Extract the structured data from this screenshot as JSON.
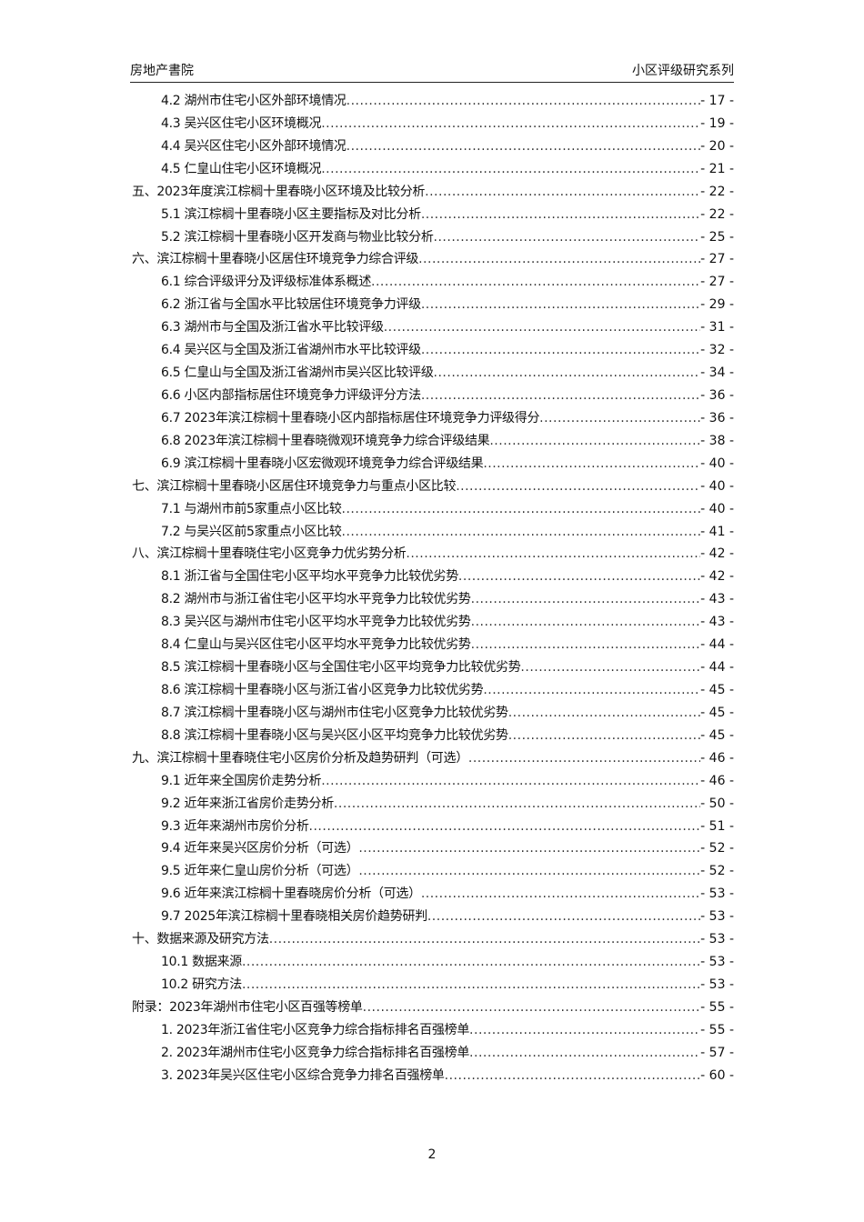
{
  "header": {
    "left": "房地产書院",
    "right": "小区评级研究系列"
  },
  "toc": [
    {
      "level": 2,
      "title": "4.2 湖州市住宅小区外部环境情况",
      "page": "- 17 -"
    },
    {
      "level": 2,
      "title": "4.3 吴兴区住宅小区环境概况",
      "page": "- 19 -"
    },
    {
      "level": 2,
      "title": "4.4 吴兴区住宅小区外部环境情况",
      "page": "- 20 -"
    },
    {
      "level": 2,
      "title": "4.5 仁皇山住宅小区环境概况",
      "page": "- 21 -"
    },
    {
      "level": 1,
      "title": "五、2023年度滨江棕榈十里春晓小区环境及比较分析",
      "page": "- 22 -"
    },
    {
      "level": 2,
      "title": "5.1 滨江棕榈十里春晓小区主要指标及对比分析",
      "page": "- 22 -"
    },
    {
      "level": 2,
      "title": "5.2 滨江棕榈十里春晓小区开发商与物业比较分析",
      "page": "- 25 -"
    },
    {
      "level": 1,
      "title": "六、滨江棕榈十里春晓小区居住环境竞争力综合评级",
      "page": "- 27 -"
    },
    {
      "level": 2,
      "title": "6.1 综合评级评分及评级标准体系概述",
      "page": "- 27 -"
    },
    {
      "level": 2,
      "title": "6.2 浙江省与全国水平比较居住环境竞争力评级",
      "page": "- 29 -"
    },
    {
      "level": 2,
      "title": "6.3 湖州市与全国及浙江省水平比较评级",
      "page": "- 31 -"
    },
    {
      "level": 2,
      "title": "6.4 吴兴区与全国及浙江省湖州市水平比较评级",
      "page": "- 32 -"
    },
    {
      "level": 2,
      "title": "6.5 仁皇山与全国及浙江省湖州市吴兴区比较评级",
      "page": "- 34 -"
    },
    {
      "level": 2,
      "title": "6.6 小区内部指标居住环境竞争力评级评分方法",
      "page": "- 36 -"
    },
    {
      "level": 2,
      "title": "6.7 2023年滨江棕榈十里春晓小区内部指标居住环境竞争力评级得分",
      "page": "- 36 -"
    },
    {
      "level": 2,
      "title": "6.8 2023年滨江棕榈十里春晓微观环境竞争力综合评级结果",
      "page": "- 38 -"
    },
    {
      "level": 2,
      "title": "6.9 滨江棕榈十里春晓小区宏微观环境竞争力综合评级结果",
      "page": "- 40 -"
    },
    {
      "level": 1,
      "title": "七、滨江棕榈十里春晓小区居住环境竞争力与重点小区比较",
      "page": "- 40 -"
    },
    {
      "level": 2,
      "title": "7.1 与湖州市前5家重点小区比较",
      "page": "- 40 -"
    },
    {
      "level": 2,
      "title": "7.2 与吴兴区前5家重点小区比较",
      "page": "- 41 -"
    },
    {
      "level": 1,
      "title": "八、滨江棕榈十里春晓住宅小区竞争力优劣势分析",
      "page": "- 42 -"
    },
    {
      "level": 2,
      "title": "8.1 浙江省与全国住宅小区平均水平竞争力比较优劣势",
      "page": "- 42 -"
    },
    {
      "level": 2,
      "title": "8.2 湖州市与浙江省住宅小区平均水平竞争力比较优劣势",
      "page": "- 43 -"
    },
    {
      "level": 2,
      "title": "8.3 吴兴区与湖州市住宅小区平均水平竞争力比较优劣势",
      "page": "- 43 -"
    },
    {
      "level": 2,
      "title": "8.4 仁皇山与吴兴区住宅小区平均水平竞争力比较优劣势",
      "page": "- 44 -"
    },
    {
      "level": 2,
      "title": "8.5 滨江棕榈十里春晓小区与全国住宅小区平均竞争力比较优劣势",
      "page": "- 44 -"
    },
    {
      "level": 2,
      "title": "8.6 滨江棕榈十里春晓小区与浙江省小区竞争力比较优劣势",
      "page": "- 45 -"
    },
    {
      "level": 2,
      "title": "8.7 滨江棕榈十里春晓小区与湖州市住宅小区竞争力比较优劣势",
      "page": "- 45 -"
    },
    {
      "level": 2,
      "title": "8.8 滨江棕榈十里春晓小区与吴兴区小区平均竞争力比较优劣势",
      "page": "- 45 -"
    },
    {
      "level": 1,
      "title": "九、滨江棕榈十里春晓住宅小区房价分析及趋势研判（可选）",
      "page": "- 46 -"
    },
    {
      "level": 2,
      "title": "9.1 近年来全国房价走势分析",
      "page": "- 46 -"
    },
    {
      "level": 2,
      "title": "9.2 近年来浙江省房价走势分析",
      "page": "- 50 -"
    },
    {
      "level": 2,
      "title": "9.3 近年来湖州市房价分析",
      "page": "- 51 -"
    },
    {
      "level": 2,
      "title": "9.4 近年来吴兴区房价分析（可选）",
      "page": "- 52 -"
    },
    {
      "level": 2,
      "title": "9.5 近年来仁皇山房价分析（可选）",
      "page": "- 52 -"
    },
    {
      "level": 2,
      "title": "9.6 近年来滨江棕榈十里春晓房价分析（可选）",
      "page": "- 53 -"
    },
    {
      "level": 2,
      "title": "9.7 2025年滨江棕榈十里春晓相关房价趋势研判",
      "page": "- 53 -"
    },
    {
      "level": 1,
      "title": "十、数据来源及研究方法",
      "page": "- 53 -"
    },
    {
      "level": 2,
      "title": "10.1 数据来源",
      "page": "- 53 -"
    },
    {
      "level": 2,
      "title": "10.2 研究方法",
      "page": "- 53 -"
    },
    {
      "level": 1,
      "title": "附录：2023年湖州市住宅小区百强等榜单",
      "page": "- 55 -"
    },
    {
      "level": 2,
      "title": "1.  2023年浙江省住宅小区竞争力综合指标排名百强榜单",
      "page": "- 55 -"
    },
    {
      "level": 2,
      "title": "2.  2023年湖州市住宅小区竞争力综合指标排名百强榜单",
      "page": "- 57 -"
    },
    {
      "level": 2,
      "title": "3.  2023年吴兴区住宅小区综合竞争力排名百强榜单",
      "page": "- 60 -"
    }
  ],
  "footer": {
    "page_number": "2"
  }
}
